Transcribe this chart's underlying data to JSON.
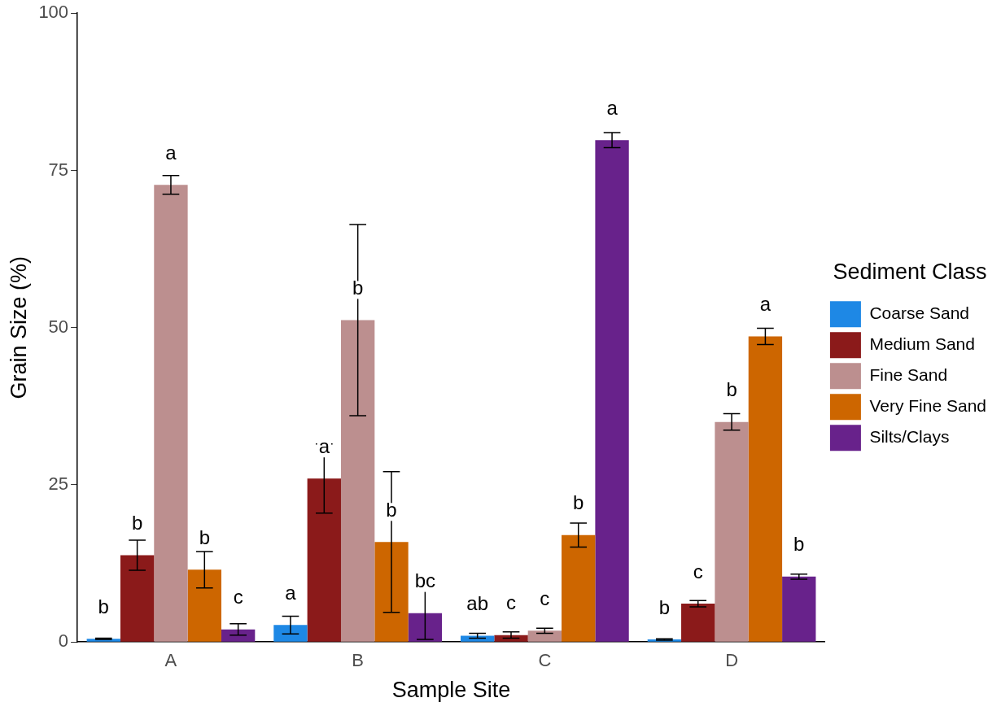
{
  "chart_data": {
    "type": "bar",
    "xlabel": "Sample Site",
    "ylabel": "Grain Size (%)",
    "legend_title": "Sediment Class",
    "legend": "right",
    "grid": false,
    "categories": [
      "A",
      "B",
      "C",
      "D"
    ],
    "ylim": [
      0,
      100
    ],
    "yticks": [
      0,
      25,
      50,
      75,
      100
    ],
    "series": [
      {
        "name": "Coarse Sand",
        "color": "#1e88e5",
        "values": [
          0.5,
          2.7,
          1.0,
          0.4
        ],
        "errors": [
          0.1,
          1.4,
          0.4,
          0.1
        ],
        "value_labels": [
          "b",
          "a",
          "ab",
          "b"
        ]
      },
      {
        "name": "Medium Sand",
        "color": "#8b1a1a",
        "values": [
          13.8,
          26.0,
          1.1,
          6.1
        ],
        "errors": [
          2.4,
          5.5,
          0.5,
          0.5
        ],
        "value_labels": [
          "b",
          "a",
          "c",
          "c"
        ]
      },
      {
        "name": "Fine Sand",
        "color": "#bc8f8f",
        "values": [
          72.7,
          51.2,
          1.8,
          35.0
        ],
        "errors": [
          1.5,
          15.2,
          0.4,
          1.3
        ],
        "value_labels": [
          "a",
          "b",
          "c",
          "b"
        ]
      },
      {
        "name": "Very Fine Sand",
        "color": "#cd6600",
        "values": [
          11.5,
          15.9,
          17.0,
          48.6
        ],
        "errors": [
          2.9,
          11.2,
          1.9,
          1.3
        ],
        "value_labels": [
          "b",
          "b",
          "b",
          "a"
        ]
      },
      {
        "name": "Silts/Clays",
        "color": "#68228b",
        "values": [
          2.0,
          4.6,
          79.8,
          10.4
        ],
        "errors": [
          0.9,
          4.2,
          1.2,
          0.4
        ],
        "value_labels": [
          "c",
          "bc",
          "a",
          "b"
        ]
      }
    ]
  }
}
